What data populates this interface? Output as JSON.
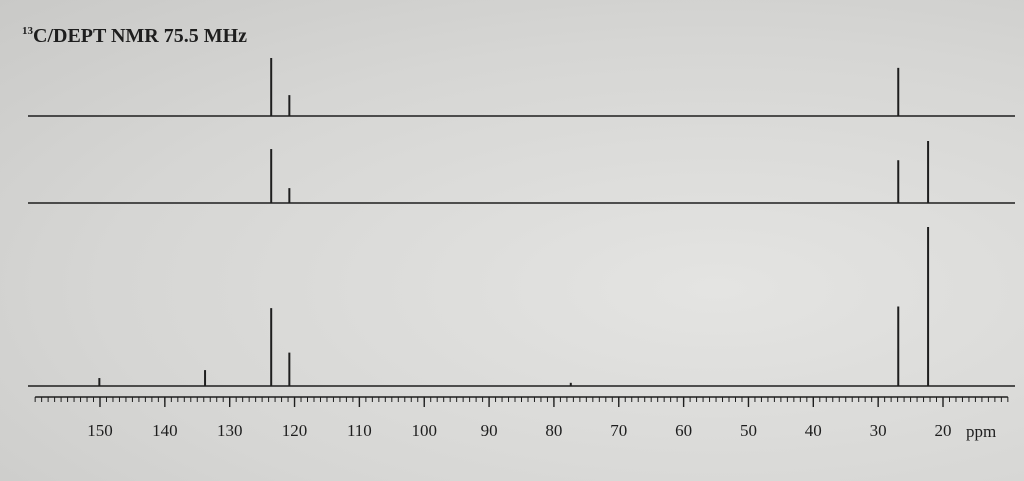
{
  "chart_data": {
    "type": "nmr",
    "title_superscript": "13",
    "title": "C/DEPT NMR 75.5 MHz",
    "x_label": "ppm",
    "xlim": [
      160,
      10
    ],
    "xticks": [
      150,
      140,
      130,
      120,
      110,
      100,
      90,
      80,
      70,
      60,
      50,
      40,
      30,
      20
    ],
    "minor_tick_step": 1,
    "color": "#1e1e1e",
    "ylim": [
      0,
      100
    ],
    "spectra": [
      {
        "peaks": [
          123.6,
          120.8,
          26.9
        ],
        "values": [
          100,
          36,
          83
        ]
      },
      {
        "peaks": [
          123.6,
          120.8,
          26.9,
          22.3
        ],
        "values": [
          87,
          24,
          69,
          100
        ]
      },
      {
        "peaks": [
          150.1,
          133.8,
          123.6,
          120.8,
          77.4,
          26.9,
          22.3
        ],
        "values": [
          5,
          10,
          49,
          21,
          2,
          50,
          100
        ]
      }
    ]
  }
}
